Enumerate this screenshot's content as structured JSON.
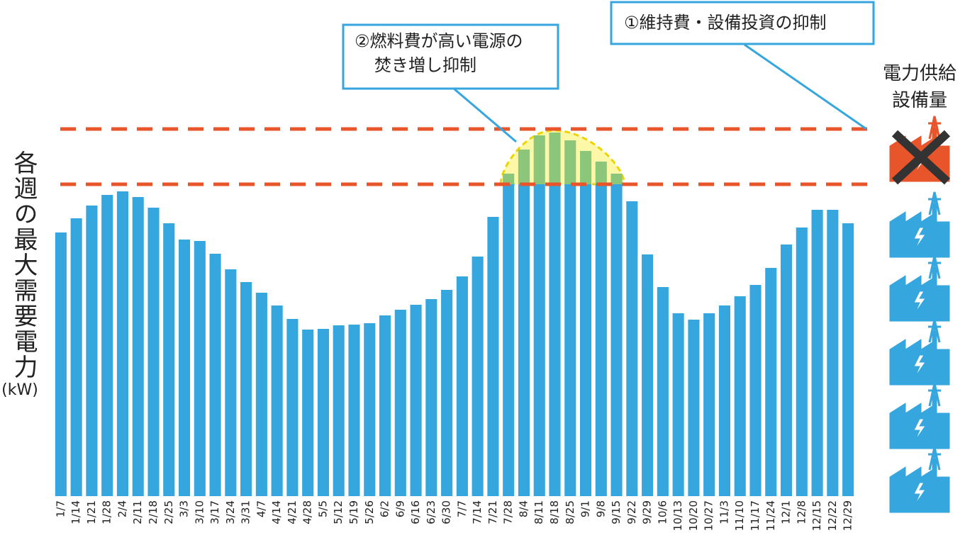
{
  "chart_data": {
    "type": "bar",
    "y_label": "各週の最大需要電力",
    "y_unit": "(kW)",
    "right_label": [
      "電力供給",
      "設備量"
    ],
    "annotations": [
      {
        "lines": [
          "②燃料費が高い電源の",
          "焚き増し抑制"
        ]
      },
      {
        "lines": [
          "①維持費・設備投資の抑制"
        ]
      }
    ],
    "categories": [
      "1/7",
      "1/14",
      "1/21",
      "1/28",
      "2/4",
      "2/11",
      "2/18",
      "2/25",
      "3/3",
      "3/10",
      "3/17",
      "3/24",
      "3/31",
      "4/7",
      "4/14",
      "4/21",
      "4/28",
      "5/5",
      "5/12",
      "5/19",
      "5/26",
      "6/2",
      "6/9",
      "6/16",
      "6/23",
      "6/30",
      "7/7",
      "7/14",
      "7/21",
      "7/28",
      "8/4",
      "8/11",
      "8/18",
      "8/25",
      "9/1",
      "9/8",
      "9/15",
      "9/22",
      "9/29",
      "10/6",
      "10/13",
      "10/20",
      "10/27",
      "11/3",
      "11/10",
      "11/17",
      "11/24",
      "12/1",
      "12/8",
      "12/15",
      "12/22",
      "12/29"
    ],
    "values": [
      372,
      392,
      410,
      425,
      430,
      422,
      407,
      385,
      362,
      360,
      342,
      320,
      302,
      287,
      269,
      250,
      235,
      236,
      241,
      242,
      244,
      255,
      263,
      270,
      278,
      291,
      310,
      338,
      394,
      455,
      489,
      509,
      513,
      502,
      487,
      472,
      455,
      416,
      341,
      295,
      258,
      249,
      258,
      269,
      282,
      298,
      322,
      355,
      379,
      404,
      404,
      385
    ],
    "color": "#36a6de",
    "peak_color": "#8cc67a",
    "reference_lines": [
      440,
      518
    ],
    "reference_color": "#e8552a",
    "ylim": [
      0,
      600
    ]
  }
}
